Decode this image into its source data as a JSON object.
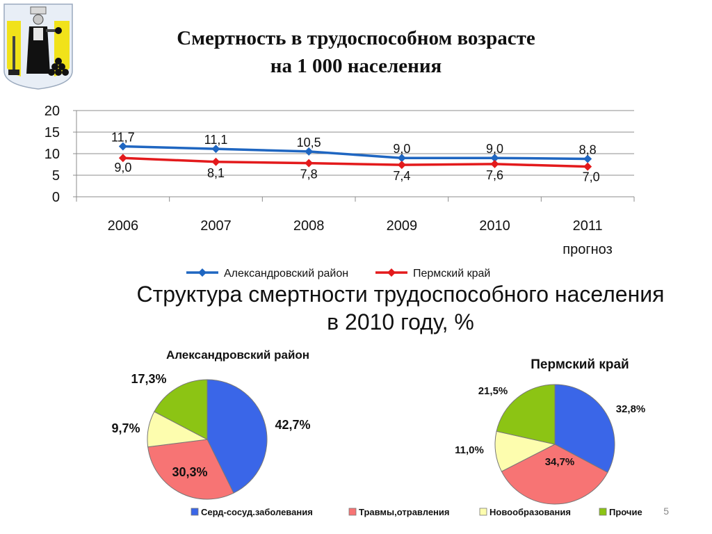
{
  "slide": {
    "title_line1": "Смертность в трудоспособном возрасте",
    "title_line2": "на 1 000 населения",
    "subtitle_line1": "Структура смертности трудоспособного населения",
    "subtitle_line2": "в 2010 году, %",
    "page_number": "5",
    "emblem_icon": "perm-coat-of-arms-icon"
  },
  "chart_data": [
    {
      "type": "line",
      "title": "Смертность в трудоспособном возрасте на 1 000 населения",
      "categories": [
        "2006",
        "2007",
        "2008",
        "2009",
        "2010",
        "2011"
      ],
      "category_note": {
        "category": "2011",
        "text": "прогноз"
      },
      "ylim": [
        0,
        20
      ],
      "yticks": [
        0,
        5,
        10,
        15,
        20
      ],
      "grid": true,
      "legend_position": "bottom",
      "series": [
        {
          "name": "Александровский район",
          "color": "#1f66c1",
          "values": [
            11.7,
            11.1,
            10.5,
            9.0,
            9.0,
            8.8
          ],
          "labels": [
            "11,7",
            "11,1",
            "10,5",
            "9,0",
            "9,0",
            "8,8"
          ]
        },
        {
          "name": "Пермский край",
          "color": "#e31a1c",
          "values": [
            9.0,
            8.1,
            7.8,
            7.4,
            7.6,
            7.0
          ],
          "labels": [
            "9,0",
            "8,1",
            "7,8",
            "7,4",
            "7,6",
            "7,0"
          ]
        }
      ]
    },
    {
      "type": "pie",
      "title": "Александровский район",
      "slices": [
        {
          "name": "Серд-сосуд.заболевания",
          "value": 42.7,
          "label": "42,7%",
          "color": "#3a66e8"
        },
        {
          "name": "Травмы,отравления",
          "value": 30.3,
          "label": "30,3%",
          "color": "#f77474"
        },
        {
          "name": "Новообразования",
          "value": 9.7,
          "label": "9,7%",
          "color": "#fdfdae"
        },
        {
          "name": "Прочие",
          "value": 17.3,
          "label": "17,3%",
          "color": "#8cc414"
        }
      ]
    },
    {
      "type": "pie",
      "title": "Пермский край",
      "slices": [
        {
          "name": "Серд-сосуд.заболевания",
          "value": 32.8,
          "label": "32,8%",
          "color": "#3a66e8"
        },
        {
          "name": "Травмы,отравления",
          "value": 34.7,
          "label": "34,7%",
          "color": "#f77474"
        },
        {
          "name": "Новообразования",
          "value": 11.0,
          "label": "11,0%",
          "color": "#fdfdae"
        },
        {
          "name": "Прочие",
          "value": 21.5,
          "label": "21,5%",
          "color": "#8cc414"
        }
      ]
    }
  ],
  "pie_legend": {
    "items": [
      {
        "name": "Серд-сосуд.заболевания",
        "color": "#3a66e8"
      },
      {
        "name": "Травмы,отравления",
        "color": "#f77474"
      },
      {
        "name": "Новообразования",
        "color": "#fdfdae"
      },
      {
        "name": "Прочие",
        "color": "#8cc414"
      }
    ]
  }
}
